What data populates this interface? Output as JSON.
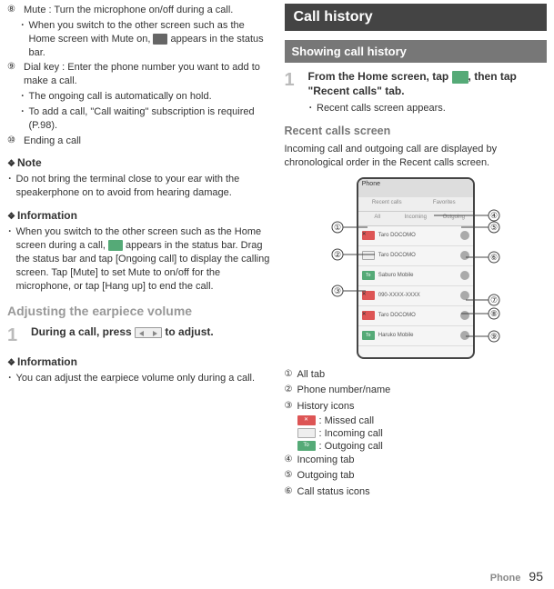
{
  "left": {
    "item8_label": "⑧",
    "item8_text": "Mute : Turn the microphone on/off during a call.",
    "item8_sub1": "When you switch to the other screen such as the Home screen with Mute on, ",
    "item8_sub1b": " appears in the status bar.",
    "item9_label": "⑨",
    "item9_text": "Dial key : Enter the phone number you want to add to make a call.",
    "item9_sub1": "The ongoing call is automatically on hold.",
    "item9_sub2": "To add a call, \"Call waiting\" subscription is required (P.98).",
    "item10_label": "⑩",
    "item10_text": "Ending a call",
    "note_heading": "Note",
    "note_bullet1": "Do not bring the terminal close to your ear with the speakerphone on to avoid from hearing damage.",
    "info1_heading": "Information",
    "info1_bullet1a": "When you switch to the other screen such as the Home screen during a call, ",
    "info1_bullet1b": " appears in the status bar. Drag the status bar and tap [Ongoing call] to display the calling screen. Tap [Mute] to set Mute to on/off for the microphone, or tap [Hang up] to end the call.",
    "adjust_heading": "Adjusting the earpiece volume",
    "step1_num": "1",
    "step1_text_a": "During a call, press ",
    "step1_text_b": " to adjust.",
    "info2_heading": "Information",
    "info2_bullet1": "You can adjust the earpiece volume only during a call."
  },
  "right": {
    "chapter": "Call history",
    "section": "Showing call history",
    "step1_num": "1",
    "step1_text_a": "From the Home screen, tap ",
    "step1_text_b": ", then tap \"Recent calls\" tab.",
    "step1_sub": "Recent calls screen appears.",
    "subheading": "Recent calls screen",
    "intro": "Incoming call and outgoing call are displayed by chronological order in the Recent calls screen.",
    "screenshot": {
      "header": "Phone",
      "tab_recent": "Recent calls",
      "tab_fav": "Favorites",
      "subtab_all": "All",
      "subtab_in": "Incoming",
      "subtab_out": "Outgoing",
      "rows": [
        {
          "name": "Taro DOCOMO",
          "type": "missed"
        },
        {
          "name": "Taro DOCOMO",
          "type": "incoming"
        },
        {
          "name": "Saburo Mobile",
          "type": "outgoing"
        },
        {
          "name": "090-XXXX-XXXX",
          "type": "missed"
        },
        {
          "name": "Taro DOCOMO",
          "type": "missed"
        },
        {
          "name": "Haruko Mobile",
          "type": "outgoing"
        }
      ]
    },
    "callouts": {
      "c1": "①",
      "c2": "②",
      "c3": "③",
      "c4": "④",
      "c5": "⑤",
      "c6": "⑥",
      "c7": "⑦",
      "c8": "⑧",
      "c9": "⑨"
    },
    "legend": {
      "l1_num": "①",
      "l1_text": "All tab",
      "l2_num": "②",
      "l2_text": "Phone number/name",
      "l3_num": "③",
      "l3_text": "History icons",
      "l3_missed": ": Missed call",
      "l3_incoming": ": Incoming call",
      "l3_outgoing": ": Outgoing call",
      "l3_out_label": "To",
      "l4_num": "④",
      "l4_text": "Incoming tab",
      "l5_num": "⑤",
      "l5_text": "Outgoing tab",
      "l6_num": "⑥",
      "l6_text": "Call status icons"
    }
  },
  "footer": {
    "label": "Phone",
    "page": "95"
  }
}
